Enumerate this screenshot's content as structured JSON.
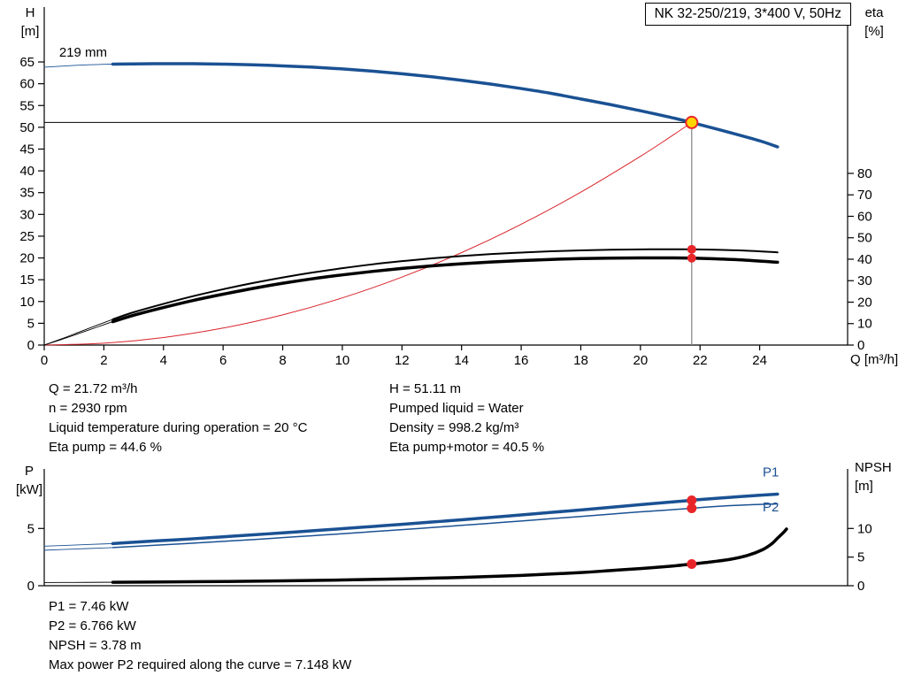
{
  "title_box": {
    "label": "NK 32-250/219, 3*400 V, 50Hz"
  },
  "axis_corner_labels": {
    "h": [
      "H",
      "[m]"
    ],
    "eta": [
      "eta",
      "[%]"
    ],
    "q": "Q [m³/h]",
    "p": [
      "P",
      "[kW]"
    ],
    "npsh": [
      "NPSH",
      "[m]"
    ]
  },
  "mid_text": {
    "left": [
      "Q = 21.72 m³/h",
      "n = 2930 rpm",
      "Liquid temperature during operation = 20 °C",
      "Eta pump = 44.6 %"
    ],
    "right": [
      "H = 51.11 m",
      "Pumped liquid = Water",
      "Density = 998.2 kg/m³",
      "Eta pump+motor = 40.5 %"
    ]
  },
  "bottom_text": [
    "P1 = 7.46 kW",
    "P2 = 6.766 kW",
    "NPSH = 3.78 m",
    "Max power P2 required along the curve = 7.148 kW"
  ],
  "colors": {
    "blue": "#1a5193",
    "red": "#e8262a",
    "yellow": "#ffd500",
    "gray": "#8a8a8a"
  },
  "chart_data": [
    {
      "id": "qh",
      "type": "line",
      "title": "QH and efficiency curves",
      "x": {
        "label": "Q [m³/h]",
        "min": 0,
        "max": 26.95,
        "ticks": [
          0,
          2,
          4,
          6,
          8,
          10,
          12,
          14,
          16,
          18,
          20,
          22,
          24
        ]
      },
      "y_left": {
        "label": "H [m]",
        "min": 0,
        "max": 77.6,
        "ticks": [
          0,
          5,
          10,
          15,
          20,
          25,
          30,
          35,
          40,
          45,
          50,
          55,
          60,
          65
        ]
      },
      "y_right": {
        "label": "eta [%]",
        "min": 0,
        "max": 157.5,
        "ticks": [
          0,
          10,
          20,
          30,
          40,
          50,
          60,
          70,
          80
        ]
      },
      "duty_point": {
        "Q": 21.72,
        "H": 51.11,
        "eta_pump": 44.6,
        "eta_pump_motor": 40.5
      },
      "series": [
        {
          "name": "system-curve",
          "axis": "left",
          "color": "#d9242b",
          "width": 1,
          "points": [
            [
              0,
              0
            ],
            [
              2,
              0.43
            ],
            [
              4,
              1.73
            ],
            [
              6,
              3.9
            ],
            [
              8,
              6.93
            ],
            [
              10,
              10.83
            ],
            [
              12,
              15.6
            ],
            [
              14,
              21.23
            ],
            [
              16,
              27.73
            ],
            [
              18,
              35.1
            ],
            [
              20,
              43.33
            ],
            [
              21,
              47.78
            ],
            [
              21.72,
              51.11
            ]
          ]
        },
        {
          "name": "eta-pump-curve",
          "axis": "right",
          "color": "#000000",
          "width": 2,
          "thin_until": 2.3,
          "points": [
            [
              0,
              0
            ],
            [
              0.6,
              3
            ],
            [
              1.2,
              6.2
            ],
            [
              1.8,
              9.4
            ],
            [
              2.3,
              12
            ],
            [
              3,
              15.3
            ],
            [
              4,
              19.2
            ],
            [
              5,
              22.8
            ],
            [
              6,
              26
            ],
            [
              7,
              28.9
            ],
            [
              8,
              31.5
            ],
            [
              9,
              33.8
            ],
            [
              10,
              35.8
            ],
            [
              11,
              37.6
            ],
            [
              12,
              39.1
            ],
            [
              13,
              40.4
            ],
            [
              14,
              41.5
            ],
            [
              15,
              42.4
            ],
            [
              16,
              43.1
            ],
            [
              17,
              43.7
            ],
            [
              18,
              44.1
            ],
            [
              19,
              44.4
            ],
            [
              20,
              44.6
            ],
            [
              21,
              44.65
            ],
            [
              21.72,
              44.6
            ],
            [
              22.5,
              44.4
            ],
            [
              23.5,
              44
            ],
            [
              24.6,
              43.2
            ]
          ]
        },
        {
          "name": "eta-pump-motor-curve",
          "axis": "right",
          "color": "#000000",
          "width": 3.5,
          "thin_until": 2.3,
          "points": [
            [
              0,
              0
            ],
            [
              0.6,
              2.7
            ],
            [
              1.2,
              5.6
            ],
            [
              1.8,
              8.5
            ],
            [
              2.3,
              10.9
            ],
            [
              3,
              13.9
            ],
            [
              4,
              17.5
            ],
            [
              5,
              20.8
            ],
            [
              6,
              23.7
            ],
            [
              7,
              26.4
            ],
            [
              8,
              28.8
            ],
            [
              9,
              30.9
            ],
            [
              10,
              32.7
            ],
            [
              11,
              34.3
            ],
            [
              12,
              35.7
            ],
            [
              13,
              36.9
            ],
            [
              14,
              37.9
            ],
            [
              15,
              38.7
            ],
            [
              16,
              39.4
            ],
            [
              17,
              39.9
            ],
            [
              18,
              40.3
            ],
            [
              19,
              40.5
            ],
            [
              20,
              40.6
            ],
            [
              21,
              40.6
            ],
            [
              21.72,
              40.5
            ],
            [
              22.5,
              40.2
            ],
            [
              23.5,
              39.6
            ],
            [
              24.6,
              38.6
            ]
          ]
        },
        {
          "name": "head-curve-219mm",
          "axis": "left",
          "color": "#1a5193",
          "width": 3.5,
          "thin_until": 2.3,
          "points": [
            [
              0,
              63.8
            ],
            [
              0.5,
              64
            ],
            [
              1,
              64.2
            ],
            [
              1.5,
              64.35
            ],
            [
              2,
              64.45
            ],
            [
              2.3,
              64.5
            ],
            [
              3,
              64.55
            ],
            [
              4,
              64.6
            ],
            [
              5,
              64.6
            ],
            [
              6,
              64.5
            ],
            [
              7,
              64.35
            ],
            [
              8,
              64.1
            ],
            [
              9,
              63.8
            ],
            [
              10,
              63.4
            ],
            [
              11,
              62.9
            ],
            [
              12,
              62.3
            ],
            [
              13,
              61.6
            ],
            [
              14,
              60.8
            ],
            [
              15,
              59.9
            ],
            [
              16,
              58.9
            ],
            [
              17,
              57.8
            ],
            [
              18,
              56.5
            ],
            [
              19,
              55.2
            ],
            [
              20,
              53.8
            ],
            [
              21,
              52.3
            ],
            [
              21.72,
              51.11
            ],
            [
              22,
              50.6
            ],
            [
              23,
              48.8
            ],
            [
              24,
              46.9
            ],
            [
              24.6,
              45.5
            ]
          ]
        }
      ],
      "lines": [
        {
          "from": [
            0,
            51.11
          ],
          "to": [
            21.72,
            51.11
          ],
          "axis": "left",
          "color": "#000000",
          "width": 1
        },
        {
          "from": [
            21.72,
            0
          ],
          "to": [
            21.72,
            51.11
          ],
          "axis": "left",
          "color": "#8a8a8a",
          "width": 1.3
        }
      ],
      "texts": [
        {
          "text": "219 mm",
          "q": 0.5,
          "v": 66.2,
          "axis": "left",
          "color": "#000000",
          "size": 15,
          "anchor": "start"
        }
      ],
      "markers": [
        {
          "q": 21.72,
          "v": 44.6,
          "axis": "right",
          "r": 5,
          "fill": "#e8262a"
        },
        {
          "q": 21.72,
          "v": 40.5,
          "axis": "right",
          "r": 5,
          "fill": "#e8262a"
        },
        {
          "q": 21.72,
          "v": 51.11,
          "axis": "left",
          "r": 6.5,
          "fill": "#ffd500",
          "stroke": "#e8262a",
          "stroke_width": 2
        }
      ]
    },
    {
      "id": "power",
      "type": "line",
      "title": "Power and NPSH curves",
      "x": {
        "label": "",
        "min": 0,
        "max": 26.95,
        "ticks": []
      },
      "y_left": {
        "label": "P [kW]",
        "min": 0,
        "max": 10.2,
        "ticks": [
          0,
          5
        ]
      },
      "y_right": {
        "label": "NPSH [m]",
        "min": 0,
        "max": 20.4,
        "ticks": [
          0,
          5,
          10
        ]
      },
      "duty_point": {
        "Q": 21.72,
        "P1": 7.46,
        "P2": 6.766,
        "NPSH": 3.78
      },
      "series": [
        {
          "name": "npsh-curve",
          "axis": "right",
          "color": "#000000",
          "width": 3.5,
          "thin_until": 2.3,
          "points": [
            [
              0,
              0.55
            ],
            [
              1,
              0.57
            ],
            [
              2,
              0.6
            ],
            [
              2.3,
              0.6
            ],
            [
              4,
              0.66
            ],
            [
              6,
              0.74
            ],
            [
              8,
              0.85
            ],
            [
              10,
              1.0
            ],
            [
              12,
              1.2
            ],
            [
              14,
              1.45
            ],
            [
              16,
              1.8
            ],
            [
              18,
              2.3
            ],
            [
              19,
              2.65
            ],
            [
              20,
              3.0
            ],
            [
              21,
              3.4
            ],
            [
              21.72,
              3.78
            ],
            [
              22.2,
              4.05
            ],
            [
              23,
              4.6
            ],
            [
              23.6,
              5.3
            ],
            [
              24.1,
              6.3
            ],
            [
              24.4,
              7.3
            ],
            [
              24.6,
              8.3
            ],
            [
              24.8,
              9.3
            ],
            [
              24.9,
              9.9
            ]
          ]
        },
        {
          "name": "p2-curve",
          "axis": "left",
          "color": "#1a5193",
          "width": 1.5,
          "thin_until": 2.3,
          "points": [
            [
              0,
              3.1
            ],
            [
              1,
              3.2
            ],
            [
              2,
              3.3
            ],
            [
              2.3,
              3.33
            ],
            [
              3,
              3.43
            ],
            [
              4,
              3.57
            ],
            [
              5,
              3.72
            ],
            [
              6,
              3.87
            ],
            [
              7,
              4.03
            ],
            [
              8,
              4.2
            ],
            [
              9,
              4.37
            ],
            [
              10,
              4.54
            ],
            [
              11,
              4.72
            ],
            [
              12,
              4.9
            ],
            [
              13,
              5.08
            ],
            [
              14,
              5.27
            ],
            [
              15,
              5.46
            ],
            [
              16,
              5.65
            ],
            [
              17,
              5.85
            ],
            [
              18,
              6.05
            ],
            [
              19,
              6.25
            ],
            [
              20,
              6.45
            ],
            [
              21,
              6.63
            ],
            [
              21.72,
              6.766
            ],
            [
              22,
              6.82
            ],
            [
              23,
              6.99
            ],
            [
              24,
              7.1
            ],
            [
              24.6,
              7.148
            ]
          ]
        },
        {
          "name": "p1-curve",
          "axis": "left",
          "color": "#1a5193",
          "width": 3.5,
          "thin_until": 2.3,
          "points": [
            [
              0,
              3.45
            ],
            [
              1,
              3.55
            ],
            [
              2,
              3.65
            ],
            [
              2.3,
              3.68
            ],
            [
              3,
              3.8
            ],
            [
              4,
              3.95
            ],
            [
              5,
              4.1
            ],
            [
              6,
              4.27
            ],
            [
              7,
              4.44
            ],
            [
              8,
              4.62
            ],
            [
              9,
              4.8
            ],
            [
              10,
              4.98
            ],
            [
              11,
              5.17
            ],
            [
              12,
              5.36
            ],
            [
              13,
              5.56
            ],
            [
              14,
              5.76
            ],
            [
              15,
              5.97
            ],
            [
              16,
              6.18
            ],
            [
              17,
              6.4
            ],
            [
              18,
              6.62
            ],
            [
              19,
              6.85
            ],
            [
              20,
              7.08
            ],
            [
              21,
              7.3
            ],
            [
              21.72,
              7.46
            ],
            [
              22,
              7.52
            ],
            [
              23,
              7.72
            ],
            [
              24,
              7.9
            ],
            [
              24.6,
              8.0
            ]
          ]
        }
      ],
      "lines": [],
      "texts": [
        {
          "text": "P1",
          "q": 24.1,
          "v": 9.55,
          "axis": "left",
          "color": "#1a5193",
          "size": 15,
          "anchor": "start"
        },
        {
          "text": "P2",
          "q": 24.1,
          "v": 6.5,
          "axis": "left",
          "color": "#1a5193",
          "size": 15,
          "anchor": "start"
        }
      ],
      "markers": [
        {
          "q": 21.72,
          "v": 7.46,
          "axis": "left",
          "r": 5.5,
          "fill": "#e8262a"
        },
        {
          "q": 21.72,
          "v": 6.766,
          "axis": "left",
          "r": 5.5,
          "fill": "#e8262a"
        },
        {
          "q": 21.72,
          "v": 3.78,
          "axis": "right",
          "r": 5.5,
          "fill": "#e8262a"
        }
      ]
    }
  ]
}
